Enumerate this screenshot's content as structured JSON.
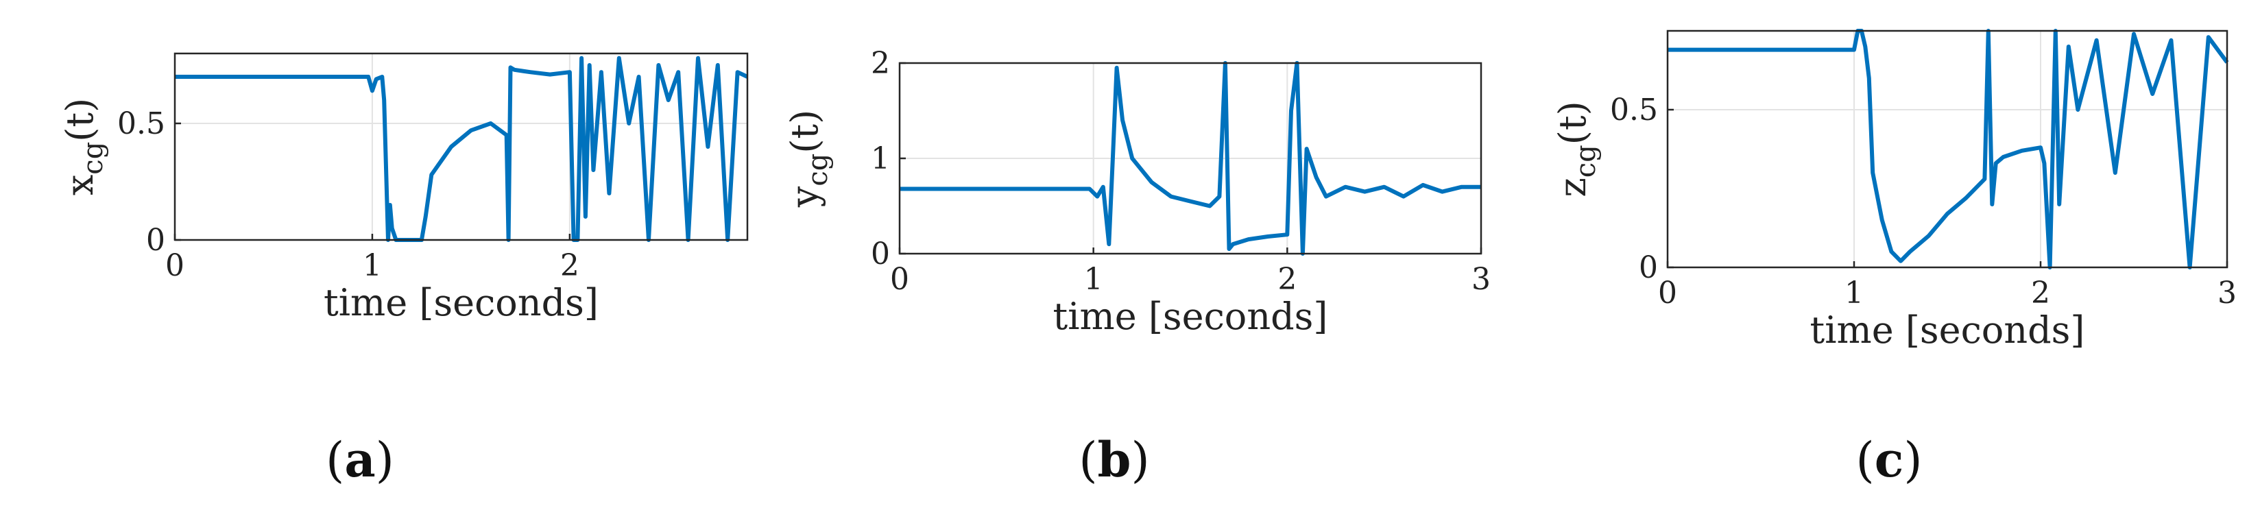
{
  "chart_data": [
    {
      "type": "line",
      "panel_label": "a",
      "title": "",
      "xlabel": "time [seconds]",
      "ylabel": "x",
      "ylabel_sub": "cg",
      "ylabel_suffix": "(t)",
      "xlim": [
        0,
        2.9
      ],
      "ylim": [
        0,
        0.8
      ],
      "xticks": [
        0,
        1,
        2
      ],
      "yticks": [
        0,
        0.5
      ],
      "ytick_labels": [
        "0",
        "0.5"
      ],
      "grid": true,
      "color": "#0072BD",
      "series": [
        {
          "x": [
            0,
            0.98,
            1.0,
            1.02,
            1.05,
            1.06,
            1.07,
            1.08,
            1.09,
            1.1,
            1.12,
            1.2,
            1.25,
            1.27,
            1.3,
            1.4,
            1.5,
            1.6,
            1.68,
            1.69,
            1.7,
            1.72,
            1.8,
            1.9,
            2.0,
            2.02,
            2.04,
            2.06,
            2.08,
            2.1,
            2.12,
            2.16,
            2.2,
            2.25,
            2.3,
            2.35,
            2.4,
            2.45,
            2.5,
            2.55,
            2.6,
            2.65,
            2.7,
            2.75,
            2.8,
            2.85,
            2.9
          ],
          "y": [
            0.7,
            0.7,
            0.64,
            0.69,
            0.7,
            0.6,
            0.3,
            0.0,
            0.15,
            0.05,
            0.0,
            0.0,
            0.0,
            0.1,
            0.28,
            0.4,
            0.47,
            0.5,
            0.45,
            0.0,
            0.74,
            0.73,
            0.72,
            0.71,
            0.72,
            0.0,
            0.0,
            0.78,
            0.1,
            0.75,
            0.3,
            0.72,
            0.2,
            0.78,
            0.5,
            0.7,
            0.0,
            0.75,
            0.6,
            0.72,
            0.0,
            0.78,
            0.4,
            0.75,
            0.0,
            0.72,
            0.7
          ]
        }
      ]
    },
    {
      "type": "line",
      "panel_label": "b",
      "title": "",
      "xlabel": "time [seconds]",
      "ylabel": "y",
      "ylabel_sub": "cg",
      "ylabel_suffix": "(t)",
      "xlim": [
        0,
        3
      ],
      "ylim": [
        0,
        2
      ],
      "xticks": [
        0,
        1,
        2,
        3
      ],
      "yticks": [
        0,
        1,
        2
      ],
      "ytick_labels": [
        "0",
        "1",
        "2"
      ],
      "grid": true,
      "color": "#0072BD",
      "series": [
        {
          "x": [
            0,
            0.98,
            1.02,
            1.05,
            1.08,
            1.1,
            1.12,
            1.15,
            1.2,
            1.3,
            1.4,
            1.5,
            1.6,
            1.65,
            1.68,
            1.7,
            1.72,
            1.8,
            1.9,
            2.0,
            2.02,
            2.05,
            2.08,
            2.1,
            2.15,
            2.2,
            2.3,
            2.4,
            2.5,
            2.6,
            2.7,
            2.8,
            2.9,
            3.0
          ],
          "y": [
            0.68,
            0.68,
            0.6,
            0.7,
            0.1,
            1.0,
            1.95,
            1.4,
            1.0,
            0.75,
            0.6,
            0.55,
            0.5,
            0.6,
            2.0,
            0.05,
            0.1,
            0.15,
            0.18,
            0.2,
            1.5,
            2.0,
            0.0,
            1.1,
            0.8,
            0.6,
            0.7,
            0.65,
            0.7,
            0.6,
            0.72,
            0.65,
            0.7,
            0.7
          ]
        }
      ]
    },
    {
      "type": "line",
      "panel_label": "c",
      "title": "",
      "xlabel": "time [seconds]",
      "ylabel": "z",
      "ylabel_sub": "cg",
      "ylabel_suffix": "(t)",
      "xlim": [
        0,
        3
      ],
      "ylim": [
        0,
        0.75
      ],
      "xticks": [
        0,
        1,
        2,
        3
      ],
      "yticks": [
        0,
        0.5
      ],
      "ytick_labels": [
        "0",
        "0.5"
      ],
      "grid": true,
      "color": "#0072BD",
      "series": [
        {
          "x": [
            0,
            1.0,
            1.02,
            1.04,
            1.06,
            1.08,
            1.1,
            1.15,
            1.2,
            1.25,
            1.3,
            1.4,
            1.5,
            1.6,
            1.7,
            1.72,
            1.74,
            1.76,
            1.8,
            1.9,
            2.0,
            2.02,
            2.05,
            2.08,
            2.1,
            2.15,
            2.2,
            2.3,
            2.4,
            2.5,
            2.6,
            2.7,
            2.8,
            2.9,
            3.0
          ],
          "y": [
            0.69,
            0.69,
            0.75,
            0.75,
            0.7,
            0.6,
            0.3,
            0.15,
            0.05,
            0.02,
            0.05,
            0.1,
            0.17,
            0.22,
            0.28,
            0.75,
            0.2,
            0.33,
            0.35,
            0.37,
            0.38,
            0.33,
            0.0,
            0.75,
            0.2,
            0.7,
            0.5,
            0.72,
            0.3,
            0.74,
            0.55,
            0.72,
            0.0,
            0.73,
            0.65
          ]
        }
      ]
    }
  ]
}
